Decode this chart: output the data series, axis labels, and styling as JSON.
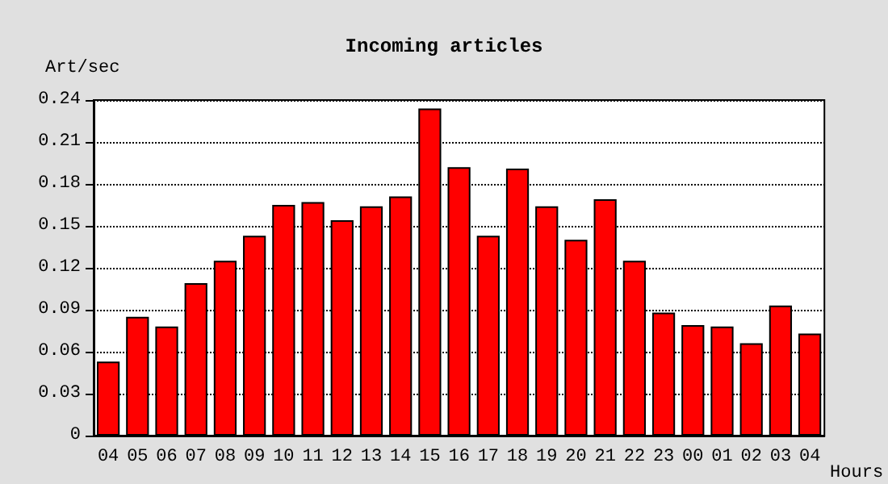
{
  "chart_data": {
    "type": "bar",
    "title": "Incoming articles",
    "ylabel": "Art/sec",
    "xlabel": "Hours",
    "categories": [
      "04",
      "05",
      "06",
      "07",
      "08",
      "09",
      "10",
      "11",
      "12",
      "13",
      "14",
      "15",
      "16",
      "17",
      "18",
      "19",
      "20",
      "21",
      "22",
      "23",
      "00",
      "01",
      "02",
      "03",
      "04"
    ],
    "values": [
      0.053,
      0.085,
      0.078,
      0.109,
      0.125,
      0.143,
      0.165,
      0.167,
      0.154,
      0.164,
      0.171,
      0.234,
      0.192,
      0.143,
      0.191,
      0.164,
      0.14,
      0.169,
      0.125,
      0.088,
      0.079,
      0.078,
      0.066,
      0.093,
      0.073
    ],
    "color": "#ff0000",
    "ylim": [
      0,
      0.24
    ],
    "yticks": [
      0,
      0.03,
      0.06,
      {
        "value": 0.09,
        "label": "0.09"
      },
      0.12,
      0.15,
      0.18,
      0.21,
      0.24
    ],
    "grid": "y",
    "line_style": "dotted"
  }
}
